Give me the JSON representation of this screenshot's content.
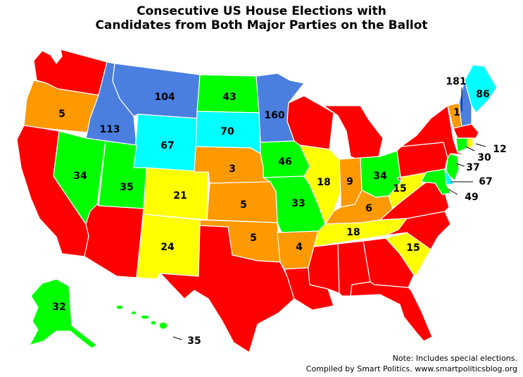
{
  "title": {
    "line1": "Consecutive US House Elections with",
    "line2": "Candidates from Both Major Parties on the Ballot"
  },
  "notes": {
    "line1": "Note: Includes special elections.",
    "line2": "Compiled by Smart Politics. www.smartpoliticsblog.org"
  },
  "colors": {
    "red": "#ff0000",
    "orange": "#ff9900",
    "yellow": "#ffff00",
    "green": "#00ff00",
    "cyan": "#00ffff",
    "blue": "#4a7fe0",
    "outline": "#ffffff"
  },
  "states": {
    "WA": {
      "color": "red"
    },
    "OR": {
      "color": "orange",
      "value": "5"
    },
    "CA": {
      "color": "red"
    },
    "ID": {
      "color": "blue",
      "value": "113"
    },
    "NV": {
      "color": "green",
      "value": "34"
    },
    "MT": {
      "color": "blue",
      "value": "104"
    },
    "WY": {
      "color": "cyan",
      "value": "67"
    },
    "UT": {
      "color": "green",
      "value": "35"
    },
    "AZ": {
      "color": "red"
    },
    "CO": {
      "color": "yellow",
      "value": "21"
    },
    "NM": {
      "color": "yellow",
      "value": "24"
    },
    "ND": {
      "color": "green",
      "value": "43"
    },
    "SD": {
      "color": "cyan",
      "value": "70"
    },
    "NE": {
      "color": "orange",
      "value": "3"
    },
    "KS": {
      "color": "orange",
      "value": "5"
    },
    "OK": {
      "color": "orange",
      "value": "5"
    },
    "TX": {
      "color": "red"
    },
    "MN": {
      "color": "blue",
      "value": "160"
    },
    "IA": {
      "color": "green",
      "value": "46"
    },
    "MO": {
      "color": "green",
      "value": "33"
    },
    "AR": {
      "color": "orange",
      "value": "4"
    },
    "LA": {
      "color": "red"
    },
    "WI": {
      "color": "red"
    },
    "IL": {
      "color": "yellow",
      "value": "18"
    },
    "MI": {
      "color": "red"
    },
    "IN": {
      "color": "orange",
      "value": "9"
    },
    "OH": {
      "color": "green",
      "value": "34"
    },
    "KY": {
      "color": "orange",
      "value": "6"
    },
    "TN": {
      "color": "yellow",
      "value": "18"
    },
    "MS": {
      "color": "red"
    },
    "AL": {
      "color": "red"
    },
    "GA": {
      "color": "red"
    },
    "FL": {
      "color": "red"
    },
    "SC": {
      "color": "yellow",
      "value": "15"
    },
    "NC": {
      "color": "red"
    },
    "VA": {
      "color": "red"
    },
    "WV": {
      "color": "yellow",
      "value": "15"
    },
    "PA": {
      "color": "red"
    },
    "NY": {
      "color": "red"
    },
    "VT": {
      "color": "orange",
      "value": "1"
    },
    "NH": {
      "color": "blue",
      "value": "181"
    },
    "ME": {
      "color": "cyan",
      "value": "86"
    },
    "MA": {
      "color": "red"
    },
    "RI": {
      "color": "yellow",
      "value": "12"
    },
    "CT": {
      "color": "green",
      "value": "30"
    },
    "NJ": {
      "color": "green",
      "value": "37"
    },
    "DE": {
      "color": "cyan",
      "value": "67"
    },
    "MD": {
      "color": "green",
      "value": "49"
    },
    "AK": {
      "color": "green",
      "value": "32"
    },
    "HI": {
      "color": "green",
      "value": "35"
    }
  }
}
